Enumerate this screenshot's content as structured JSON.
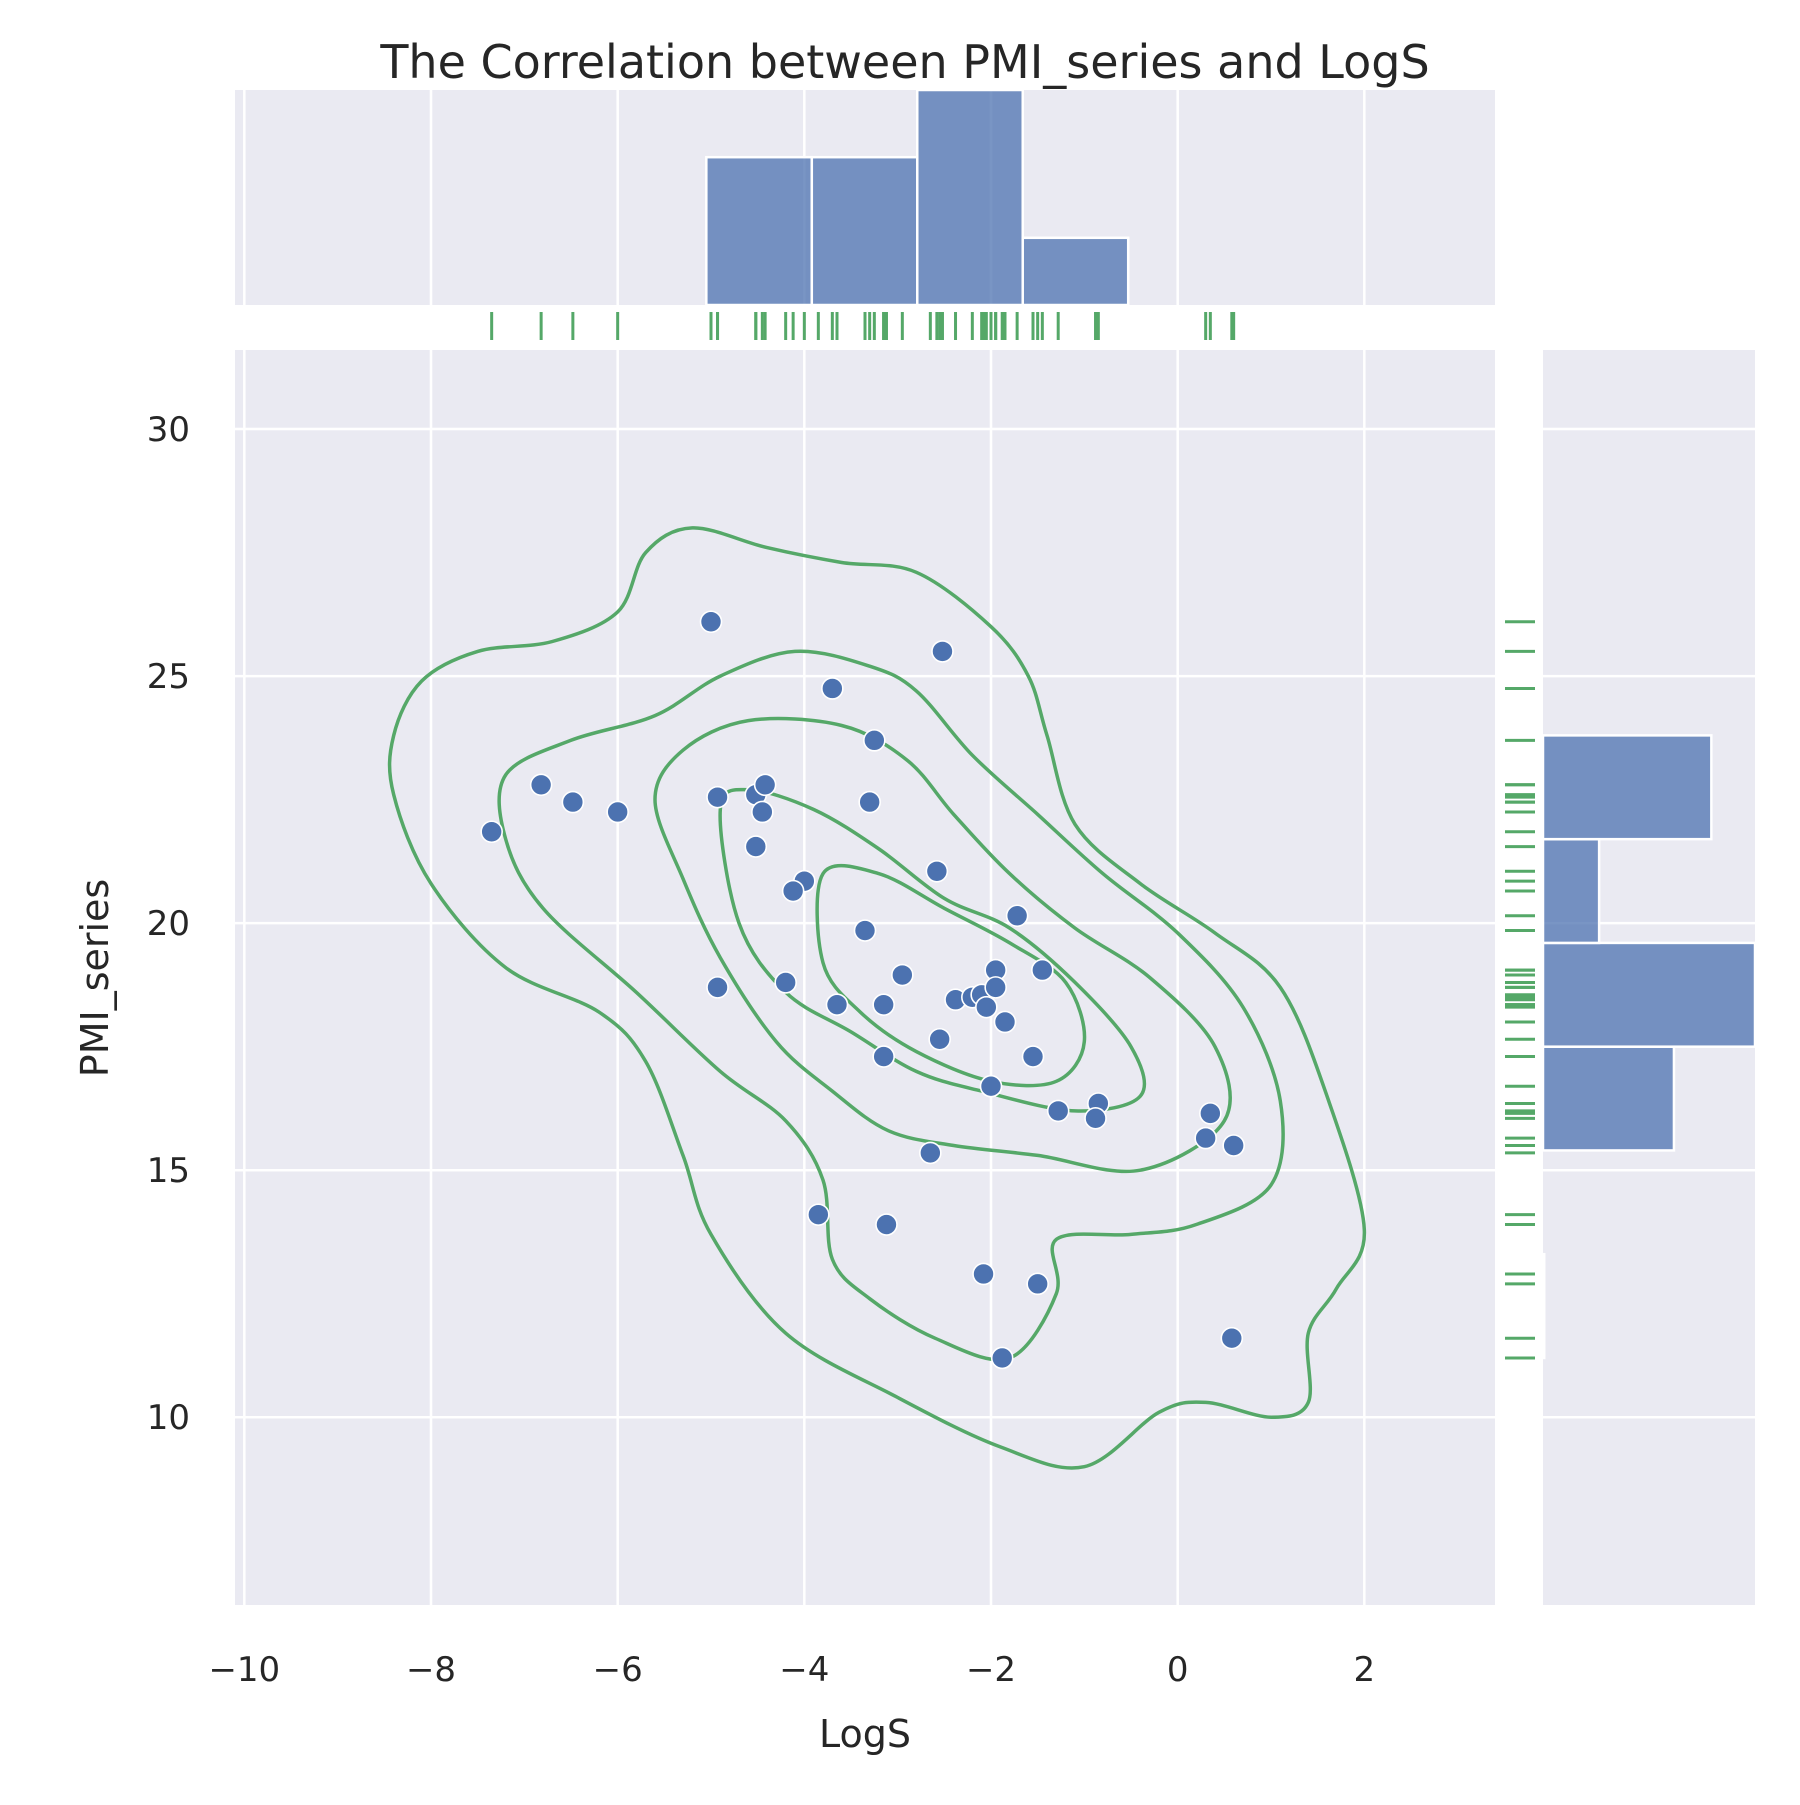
{
  "chart_data": {
    "type": "scatter",
    "title": "The Correlation between PMI_series and LogS",
    "xlabel": "LogS",
    "ylabel": "PMI_series",
    "xlim": [
      -10.1,
      3.4
    ],
    "ylim": [
      6.2,
      31.6
    ],
    "xticks": [
      -10,
      -8,
      -6,
      -4,
      -2,
      0,
      2
    ],
    "xtick_labels": [
      "−10",
      "−8",
      "−6",
      "−4",
      "−2",
      "0",
      "2"
    ],
    "yticks": [
      10,
      15,
      20,
      25,
      30
    ],
    "ytick_labels": [
      "10",
      "15",
      "20",
      "25",
      "30"
    ],
    "grid": true,
    "colors": {
      "background": "#eaeaf2",
      "grid": "#ffffff",
      "points": "#4c72b0",
      "histogram": "#4c72b0",
      "kde": "#55a868",
      "rug": "#55a868"
    },
    "points": [
      {
        "x": -7.35,
        "y": 21.85
      },
      {
        "x": -6.82,
        "y": 22.8
      },
      {
        "x": -6.48,
        "y": 22.45
      },
      {
        "x": -6.0,
        "y": 22.25
      },
      {
        "x": -5.0,
        "y": 26.1
      },
      {
        "x": -4.93,
        "y": 22.55
      },
      {
        "x": -4.93,
        "y": 18.7
      },
      {
        "x": -4.52,
        "y": 22.6
      },
      {
        "x": -4.42,
        "y": 22.8
      },
      {
        "x": -4.45,
        "y": 22.25
      },
      {
        "x": -4.52,
        "y": 21.55
      },
      {
        "x": -4.2,
        "y": 18.8
      },
      {
        "x": -4.0,
        "y": 20.85
      },
      {
        "x": -4.12,
        "y": 20.65
      },
      {
        "x": -3.7,
        "y": 24.75
      },
      {
        "x": -3.65,
        "y": 18.35
      },
      {
        "x": -3.35,
        "y": 19.85
      },
      {
        "x": -3.25,
        "y": 23.7
      },
      {
        "x": -3.3,
        "y": 22.45
      },
      {
        "x": -3.15,
        "y": 18.35
      },
      {
        "x": -3.15,
        "y": 17.3
      },
      {
        "x": -2.95,
        "y": 18.95
      },
      {
        "x": -3.85,
        "y": 14.1
      },
      {
        "x": -3.12,
        "y": 13.9
      },
      {
        "x": -2.52,
        "y": 25.5
      },
      {
        "x": -2.58,
        "y": 21.05
      },
      {
        "x": -2.55,
        "y": 17.65
      },
      {
        "x": -2.65,
        "y": 15.35
      },
      {
        "x": -2.38,
        "y": 18.45
      },
      {
        "x": -2.2,
        "y": 18.5
      },
      {
        "x": -2.1,
        "y": 18.55
      },
      {
        "x": -2.05,
        "y": 18.3
      },
      {
        "x": -1.95,
        "y": 19.05
      },
      {
        "x": -1.95,
        "y": 18.7
      },
      {
        "x": -1.85,
        "y": 18.0
      },
      {
        "x": -1.72,
        "y": 20.15
      },
      {
        "x": -2.0,
        "y": 16.7
      },
      {
        "x": -1.55,
        "y": 17.3
      },
      {
        "x": -1.45,
        "y": 19.05
      },
      {
        "x": -1.28,
        "y": 16.2
      },
      {
        "x": -0.85,
        "y": 16.35
      },
      {
        "x": -0.88,
        "y": 16.05
      },
      {
        "x": -2.08,
        "y": 12.9
      },
      {
        "x": -1.88,
        "y": 11.2
      },
      {
        "x": -1.5,
        "y": 12.7
      },
      {
        "x": 0.35,
        "y": 16.15
      },
      {
        "x": 0.3,
        "y": 15.65
      },
      {
        "x": 0.6,
        "y": 15.5
      },
      {
        "x": 0.58,
        "y": 11.6
      }
    ],
    "x_histogram": {
      "bin_edges": [
        -5.05,
        -3.92,
        -2.79,
        -1.66,
        -0.53
      ],
      "counts": [
        11,
        11,
        16,
        5
      ]
    },
    "y_histogram": {
      "bin_edges": [
        11.2,
        13.3,
        15.4,
        17.5,
        19.6,
        21.7,
        23.8
      ],
      "counts": [
        0.1,
        0,
        10.5,
        17,
        4.5,
        13.5
      ]
    },
    "kde_contours": [
      [
        [
          -8.4,
          23.8
        ],
        [
          -8.1,
          24.9
        ],
        [
          -7.5,
          25.5
        ],
        [
          -6.7,
          25.7
        ],
        [
          -6.0,
          26.3
        ],
        [
          -5.7,
          27.5
        ],
        [
          -5.2,
          28.0
        ],
        [
          -4.4,
          27.6
        ],
        [
          -3.6,
          27.3
        ],
        [
          -2.8,
          27.1
        ],
        [
          -2.0,
          26.0
        ],
        [
          -1.6,
          25.0
        ],
        [
          -1.4,
          23.8
        ],
        [
          -1.1,
          22.0
        ],
        [
          -0.4,
          20.8
        ],
        [
          0.4,
          19.8
        ],
        [
          1.1,
          18.7
        ],
        [
          1.6,
          16.5
        ],
        [
          2.0,
          13.8
        ],
        [
          1.7,
          12.6
        ],
        [
          1.4,
          11.7
        ],
        [
          1.4,
          10.3
        ],
        [
          1.0,
          10.0
        ],
        [
          0.3,
          10.3
        ],
        [
          -0.2,
          10.1
        ],
        [
          -1.0,
          9.0
        ],
        [
          -1.9,
          9.4
        ],
        [
          -3.0,
          10.4
        ],
        [
          -4.2,
          11.7
        ],
        [
          -5.0,
          13.7
        ],
        [
          -5.3,
          15.3
        ],
        [
          -5.7,
          17.2
        ],
        [
          -6.2,
          18.2
        ],
        [
          -7.2,
          19.1
        ],
        [
          -8.0,
          20.8
        ],
        [
          -8.4,
          22.6
        ],
        [
          -8.4,
          23.8
        ]
      ],
      [
        [
          -7.2,
          23.0
        ],
        [
          -6.5,
          23.7
        ],
        [
          -5.6,
          24.2
        ],
        [
          -4.9,
          25.0
        ],
        [
          -4.1,
          25.5
        ],
        [
          -3.3,
          25.2
        ],
        [
          -2.8,
          24.7
        ],
        [
          -2.2,
          23.4
        ],
        [
          -1.5,
          22.2
        ],
        [
          -0.8,
          21.0
        ],
        [
          0.0,
          19.8
        ],
        [
          0.7,
          18.3
        ],
        [
          1.1,
          16.4
        ],
        [
          1.0,
          14.7
        ],
        [
          0.2,
          13.9
        ],
        [
          -0.5,
          13.7
        ],
        [
          -1.3,
          13.6
        ],
        [
          -1.3,
          12.5
        ],
        [
          -1.8,
          11.2
        ],
        [
          -2.6,
          11.6
        ],
        [
          -3.3,
          12.4
        ],
        [
          -3.7,
          13.2
        ],
        [
          -3.8,
          14.8
        ],
        [
          -4.2,
          16.0
        ],
        [
          -4.9,
          17.0
        ],
        [
          -5.8,
          18.6
        ],
        [
          -6.8,
          20.3
        ],
        [
          -7.2,
          21.7
        ],
        [
          -7.2,
          23.0
        ]
      ],
      [
        [
          -5.6,
          22.5
        ],
        [
          -5.3,
          23.5
        ],
        [
          -4.6,
          24.1
        ],
        [
          -3.6,
          24.0
        ],
        [
          -2.9,
          23.3
        ],
        [
          -2.4,
          22.2
        ],
        [
          -1.8,
          21.0
        ],
        [
          -1.1,
          19.9
        ],
        [
          -0.3,
          18.9
        ],
        [
          0.4,
          17.5
        ],
        [
          0.5,
          16.0
        ],
        [
          -0.4,
          15.0
        ],
        [
          -1.5,
          15.3
        ],
        [
          -2.4,
          15.5
        ],
        [
          -3.1,
          15.8
        ],
        [
          -3.7,
          16.6
        ],
        [
          -4.3,
          17.6
        ],
        [
          -4.9,
          19.3
        ],
        [
          -5.3,
          20.9
        ],
        [
          -5.6,
          22.5
        ]
      ],
      [
        [
          -4.9,
          22.3
        ],
        [
          -4.6,
          22.7
        ],
        [
          -3.9,
          22.3
        ],
        [
          -3.2,
          21.5
        ],
        [
          -2.5,
          20.5
        ],
        [
          -1.8,
          19.9
        ],
        [
          -1.1,
          18.8
        ],
        [
          -0.5,
          17.5
        ],
        [
          -0.4,
          16.5
        ],
        [
          -1.1,
          16.2
        ],
        [
          -2.1,
          16.6
        ],
        [
          -2.8,
          17.0
        ],
        [
          -3.5,
          17.8
        ],
        [
          -4.2,
          18.6
        ],
        [
          -4.7,
          20.0
        ],
        [
          -4.9,
          22.3
        ]
      ],
      [
        [
          -3.8,
          21.0
        ],
        [
          -3.2,
          21.0
        ],
        [
          -2.5,
          20.3
        ],
        [
          -1.8,
          19.6
        ],
        [
          -1.2,
          18.8
        ],
        [
          -1.0,
          17.6
        ],
        [
          -1.3,
          16.8
        ],
        [
          -2.0,
          16.8
        ],
        [
          -2.8,
          17.4
        ],
        [
          -3.4,
          18.2
        ],
        [
          -3.8,
          19.2
        ],
        [
          -3.8,
          21.0
        ]
      ]
    ],
    "x_rug": [
      -7.35,
      -6.82,
      -6.48,
      -6.0,
      -5.0,
      -4.93,
      -4.93,
      -4.52,
      -4.45,
      -4.42,
      -4.52,
      -4.2,
      -4.12,
      -4.0,
      -3.85,
      -3.7,
      -3.65,
      -3.35,
      -3.3,
      -3.25,
      -3.15,
      -3.15,
      -3.12,
      -2.95,
      -2.65,
      -2.58,
      -2.55,
      -2.52,
      -2.38,
      -2.2,
      -2.1,
      -2.08,
      -2.05,
      -2.0,
      -1.95,
      -1.95,
      -1.88,
      -1.85,
      -1.72,
      -1.55,
      -1.5,
      -1.45,
      -1.28,
      -0.88,
      -0.85,
      0.3,
      0.35,
      0.58,
      0.6
    ],
    "y_rug": [
      26.1,
      25.5,
      24.75,
      23.7,
      22.8,
      22.8,
      22.6,
      22.55,
      22.45,
      22.45,
      22.25,
      22.25,
      21.85,
      21.55,
      21.05,
      20.85,
      20.65,
      20.15,
      19.85,
      19.05,
      19.05,
      18.95,
      18.8,
      18.7,
      18.7,
      18.55,
      18.5,
      18.45,
      18.35,
      18.35,
      18.3,
      18.0,
      17.65,
      17.3,
      17.3,
      16.7,
      16.35,
      16.2,
      16.15,
      16.05,
      15.65,
      15.5,
      15.35,
      14.1,
      13.9,
      12.9,
      12.7,
      11.6,
      11.2
    ]
  }
}
